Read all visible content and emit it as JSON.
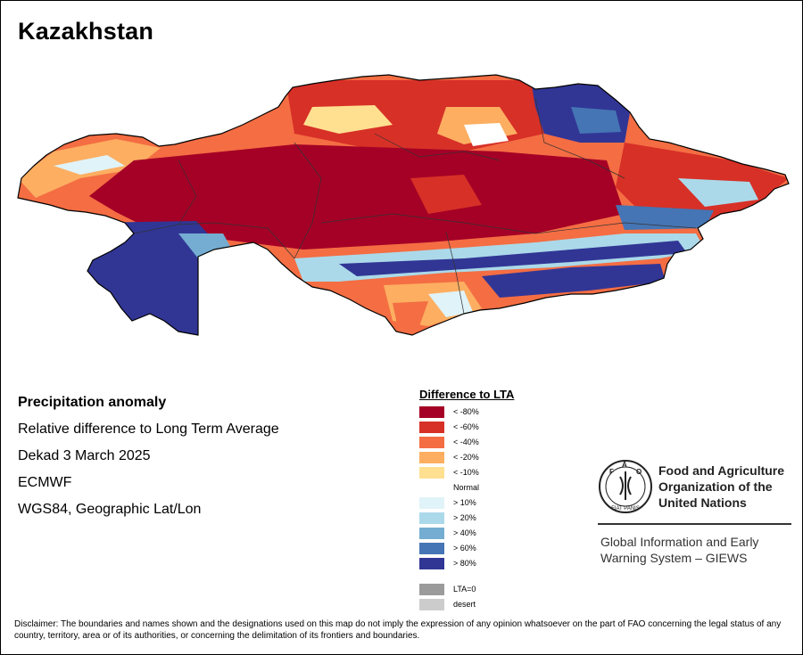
{
  "title": "Kazakhstan",
  "info": {
    "heading": "Precipitation anomaly",
    "subtitle": "Relative difference to Long Term Average",
    "period": "Dekad 3 March 2025",
    "source": "ECMWF",
    "projection": "WGS84, Geographic Lat/Lon"
  },
  "legend": {
    "title": "Difference to LTA",
    "items": [
      {
        "label": "< -80%",
        "color": "#a50026"
      },
      {
        "label": "< -60%",
        "color": "#d73027"
      },
      {
        "label": "< -40%",
        "color": "#f46d43"
      },
      {
        "label": "< -20%",
        "color": "#fdae61"
      },
      {
        "label": "< -10%",
        "color": "#fee090"
      },
      {
        "label": "Normal",
        "color": "#ffffff"
      },
      {
        "label": "> 10%",
        "color": "#e0f3f8"
      },
      {
        "label": "> 20%",
        "color": "#abd9e9"
      },
      {
        "label": "> 40%",
        "color": "#74add1"
      },
      {
        "label": "> 60%",
        "color": "#4575b4"
      },
      {
        "label": "> 80%",
        "color": "#313695"
      }
    ],
    "extra": [
      {
        "label": "LTA=0",
        "color": "#9b9b9b"
      },
      {
        "label": "desert",
        "color": "#cccccc"
      }
    ]
  },
  "fao": {
    "logo_letters": "FAO",
    "logo_motto": "FIAT PANIS",
    "name_line1": "Food and Agriculture",
    "name_line2": "Organization of the",
    "name_line3": "United Nations",
    "giews_line1": "Global Information and Early",
    "giews_line2": "Warning System – GIEWS"
  },
  "disclaimer": "Disclaimer: The boundaries and names shown and the designations used on this map do not imply the expression of any opinion whatsoever on the part of FAO concerning the legal status of any country, territory, area or of its authorities, or concerning the delimitation of its frontiers and boundaries."
}
